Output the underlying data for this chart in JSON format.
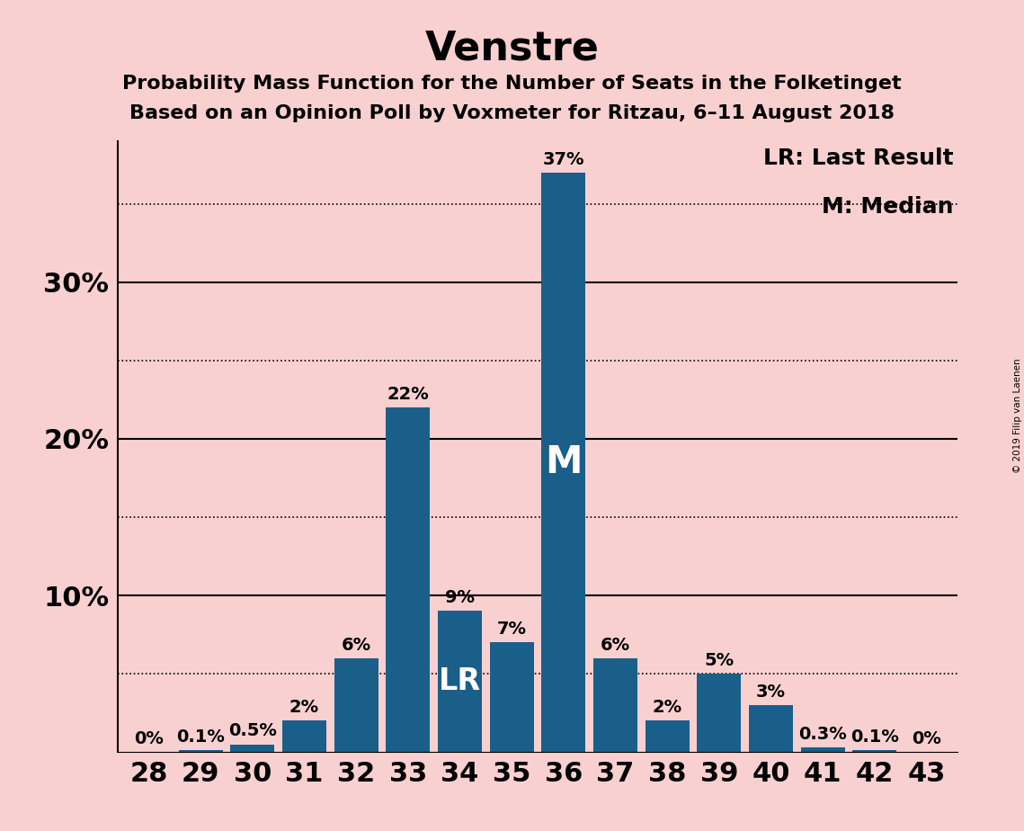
{
  "title": "Venstre",
  "subtitle1": "Probability Mass Function for the Number of Seats in the Folketinget",
  "subtitle2": "Based on an Opinion Poll by Voxmeter for Ritzau, 6–11 August 2018",
  "copyright": "© 2019 Filip van Laenen",
  "categories": [
    28,
    29,
    30,
    31,
    32,
    33,
    34,
    35,
    36,
    37,
    38,
    39,
    40,
    41,
    42,
    43
  ],
  "values": [
    0.0,
    0.1,
    0.5,
    2.0,
    6.0,
    22.0,
    9.0,
    7.0,
    37.0,
    6.0,
    2.0,
    5.0,
    3.0,
    0.3,
    0.1,
    0.0
  ],
  "labels": [
    "0%",
    "0.1%",
    "0.5%",
    "2%",
    "6%",
    "22%",
    "9%",
    "7%",
    "37%",
    "6%",
    "2%",
    "5%",
    "3%",
    "0.3%",
    "0.1%",
    "0%"
  ],
  "bar_color": "#1a5f8a",
  "background_color": "#f9d0d0",
  "lr_bar": 34,
  "median_bar": 36,
  "lr_label": "LR: Last Result",
  "median_label": "M: Median",
  "lr_text": "LR",
  "median_text": "M",
  "ylim": [
    0,
    39
  ],
  "ytick_positions": [
    10,
    20,
    30
  ],
  "ytick_labels": [
    "10%",
    "20%",
    "30%"
  ],
  "dotted_lines": [
    5,
    15,
    25,
    35
  ],
  "solid_lines": [
    10,
    20,
    30
  ],
  "title_fontsize": 32,
  "subtitle_fontsize": 16,
  "tick_fontsize": 22,
  "legend_fontsize": 18,
  "bar_label_fontsize": 14,
  "inbar_lr_fontsize": 24,
  "inbar_m_fontsize": 30
}
